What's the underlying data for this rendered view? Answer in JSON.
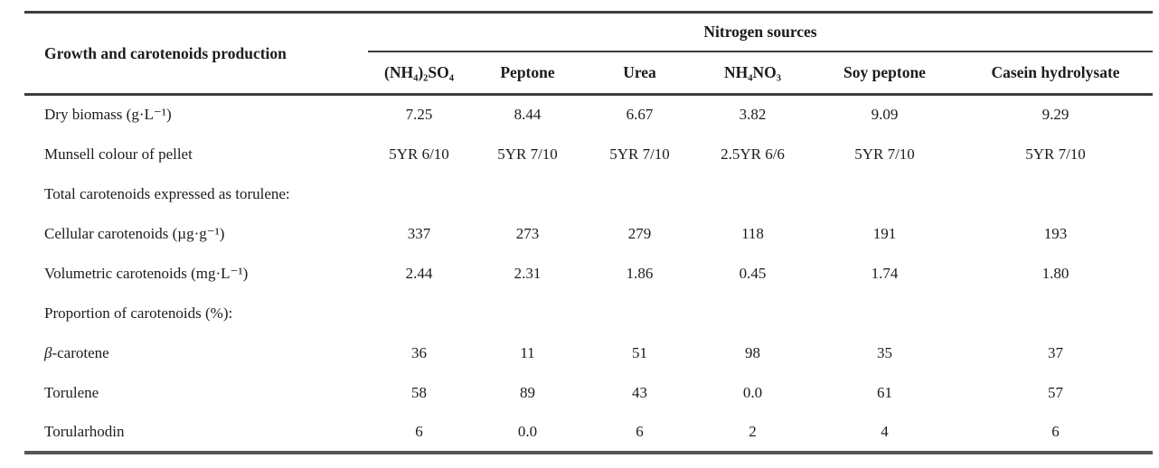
{
  "table": {
    "row_header_title": "Growth and carotenoids production",
    "group_header": "Nitrogen sources",
    "columns": [
      "(NH₄)₂SO₄",
      "Peptone",
      "Urea",
      "NH₄NO₃",
      "Soy peptone",
      "Casein hydrolysate"
    ],
    "rows": [
      {
        "label": "Dry biomass (g·L⁻¹)",
        "values": [
          "7.25",
          "8.44",
          "6.67",
          "3.82",
          "9.09",
          "9.29"
        ]
      },
      {
        "label": "Munsell colour of pellet",
        "values": [
          "5YR 6/10",
          "5YR 7/10",
          "5YR 7/10",
          "2.5YR 6/6",
          "5YR 7/10",
          "5YR 7/10"
        ]
      },
      {
        "label": "Total carotenoids expressed as torulene:",
        "values": [
          "",
          "",
          "",
          "",
          "",
          ""
        ]
      },
      {
        "label": "Cellular carotenoids (µg·g⁻¹)",
        "values": [
          "337",
          "273",
          "279",
          "118",
          "191",
          "193"
        ]
      },
      {
        "label": "Volumetric carotenoids (mg·L⁻¹)",
        "values": [
          "2.44",
          "2.31",
          "1.86",
          "0.45",
          "1.74",
          "1.80"
        ]
      },
      {
        "label": "Proportion of carotenoids (%):",
        "values": [
          "",
          "",
          "",
          "",
          "",
          ""
        ]
      },
      {
        "label_beta": "β",
        "label_rest": "-carotene",
        "values": [
          "36",
          "11",
          "51",
          "98",
          "35",
          "37"
        ]
      },
      {
        "label": "Torulene",
        "values": [
          "58",
          "89",
          "43",
          "0.0",
          "61",
          "57"
        ]
      },
      {
        "label": "Torularhodin",
        "values": [
          "6",
          "0.0",
          "6",
          "2",
          "4",
          "6"
        ]
      }
    ],
    "colors": {
      "rule_dark": "#3e3e3e",
      "rule_bottom": "#575757",
      "text": "#1c1c1c",
      "background": "#ffffff"
    }
  }
}
